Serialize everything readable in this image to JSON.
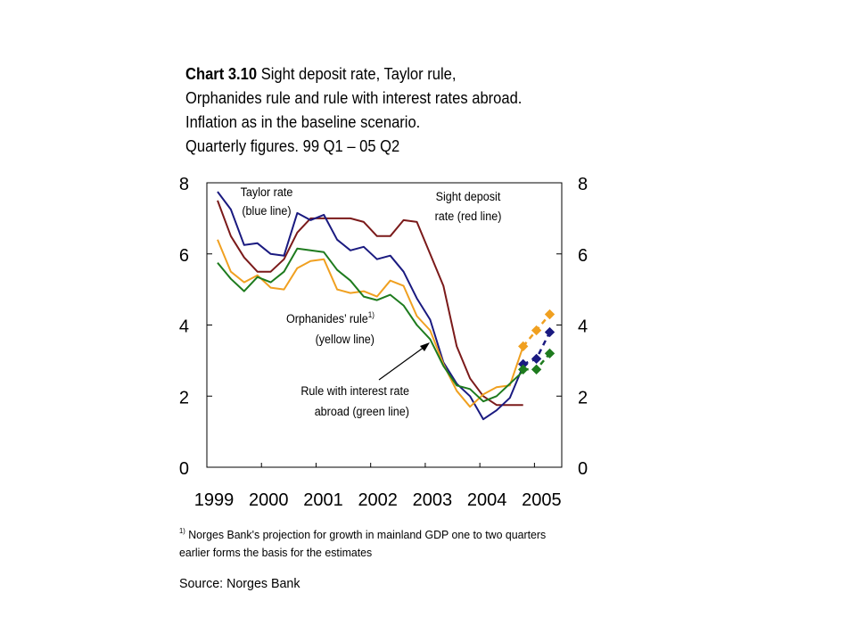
{
  "title": {
    "bold": "Chart 3.10",
    "line1": "Sight deposit rate, Taylor rule,",
    "line2": "Orphanides rule and rule with interest rates abroad.",
    "line3": "Inflation as in the baseline scenario.",
    "line4": "Quarterly figures. 99 Q1 – 05 Q2"
  },
  "footnote": {
    "marker": "1)",
    "text": "Norges Bank's projection for growth in mainland GDP one to two quarters earlier forms the basis for the estimates"
  },
  "source": "Source: Norges Bank",
  "chart_data": {
    "type": "line",
    "x_start": "1999 Q1",
    "xlim": [
      1999.0,
      2005.5
    ],
    "ylim": [
      0,
      8
    ],
    "y_ticks": [
      "0",
      "2",
      "4",
      "6",
      "8"
    ],
    "x_tick_labels": [
      "1999",
      "2000",
      "2001",
      "2002",
      "2003",
      "2004",
      "2005"
    ],
    "grid": false,
    "annotations": [
      {
        "lines": [
          "Taylor rate",
          "(blue line)"
        ]
      },
      {
        "lines": [
          "Sight deposit",
          "rate (red line)"
        ]
      },
      {
        "lines": [
          "Orphanides’ rule",
          "(yellow line)"
        ],
        "sup": "1)"
      },
      {
        "lines": [
          "Rule with interest rate",
          "abroad (green line)"
        ]
      }
    ],
    "series": [
      {
        "color": "#7b1a1a",
        "style": "solid",
        "values": [
          7.5,
          6.5,
          5.9,
          5.5,
          5.5,
          5.85,
          6.6,
          7.0,
          7.0,
          7.0,
          7.0,
          6.9,
          6.5,
          6.5,
          6.95,
          6.9,
          6.0,
          5.1,
          3.4,
          2.5,
          2.0,
          1.75,
          1.75,
          1.75
        ]
      },
      {
        "color": "#1a1a80",
        "style": "solid",
        "values": [
          7.75,
          7.25,
          6.25,
          6.3,
          6.0,
          5.95,
          7.15,
          6.95,
          7.1,
          6.4,
          6.1,
          6.2,
          5.85,
          5.95,
          5.5,
          4.75,
          4.15,
          2.95,
          2.35,
          2.0,
          1.35,
          1.6,
          1.95,
          2.85
        ]
      },
      {
        "color": "#f0a020",
        "style": "solid",
        "values": [
          6.4,
          5.5,
          5.2,
          5.4,
          5.05,
          5.0,
          5.6,
          5.8,
          5.85,
          5.0,
          4.9,
          4.95,
          4.8,
          5.25,
          5.1,
          4.25,
          3.85,
          2.9,
          2.15,
          1.7,
          2.05,
          2.25,
          2.3,
          3.4
        ]
      },
      {
        "color": "#1e7b1e",
        "style": "solid",
        "values": [
          5.75,
          5.3,
          4.95,
          5.35,
          5.2,
          5.5,
          6.15,
          6.1,
          6.05,
          5.55,
          5.25,
          4.8,
          4.7,
          4.85,
          4.55,
          4.0,
          3.6,
          2.85,
          2.3,
          2.2,
          1.85,
          2.0,
          2.35,
          2.7
        ]
      },
      {
        "color": "#f0a020",
        "style": "dashed",
        "start_index": 23,
        "values": [
          3.4,
          3.85,
          4.3
        ]
      },
      {
        "color": "#1a1a80",
        "style": "dashed",
        "start_index": 23,
        "values": [
          2.9,
          3.05,
          3.8
        ]
      },
      {
        "color": "#1e7b1e",
        "style": "dashed",
        "start_index": 23,
        "values": [
          2.75,
          2.75,
          3.2
        ]
      }
    ]
  }
}
